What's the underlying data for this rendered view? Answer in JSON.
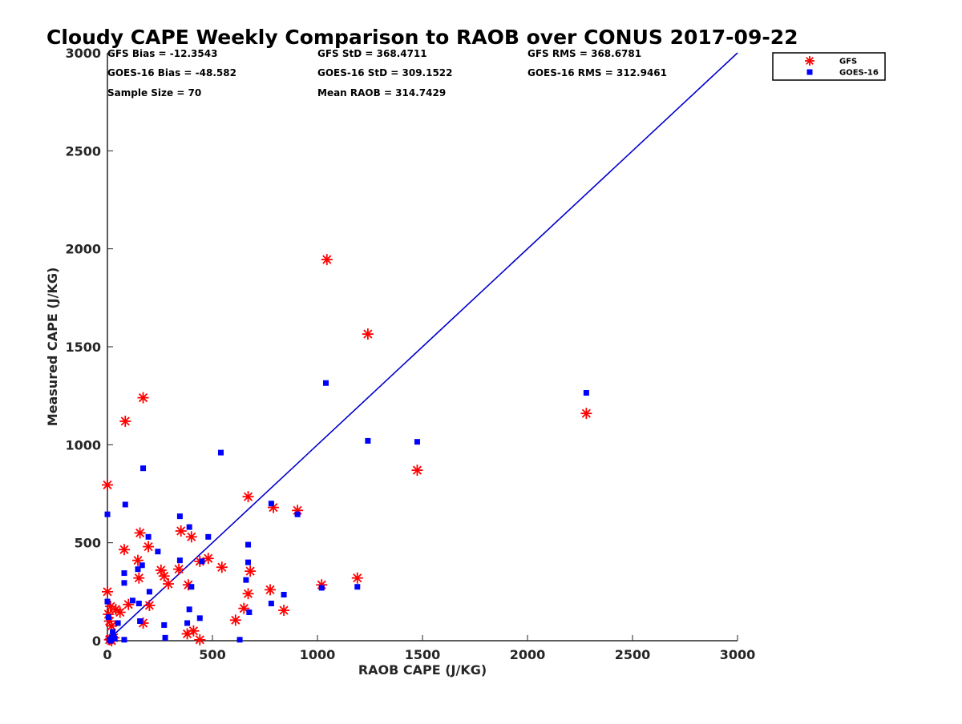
{
  "chart_data": {
    "type": "scatter",
    "title": "Cloudy CAPE Weekly Comparison to RAOB over CONUS 2017-09-22",
    "xlabel": "RAOB CAPE (J/KG)",
    "ylabel": "Measured CAPE (J/KG)",
    "xlim": [
      0,
      3000
    ],
    "ylim": [
      0,
      3000
    ],
    "xticks": [
      "0",
      "500",
      "1000",
      "1500",
      "2000",
      "2500",
      "3000"
    ],
    "yticks": [
      "0",
      "500",
      "1000",
      "1500",
      "2000",
      "2500",
      "3000"
    ],
    "grid": false,
    "legend_position": "top-right",
    "colors": {
      "gfs": "#ff0000",
      "goes": "#0000ff",
      "reference_line": "#0000cc"
    },
    "stats": [
      "GFS Bias = -12.3543",
      "GFS StD = 368.4711",
      "GFS RMS = 368.6781",
      "GOES-16 Bias = -48.582",
      "GOES-16 StD = 309.1522",
      "GOES-16 RMS = 312.9461",
      "Sample Size = 70",
      "Mean RAOB = 314.7429"
    ],
    "reference_line": {
      "x": [
        0,
        3000
      ],
      "y": [
        0,
        3000
      ]
    },
    "series": [
      {
        "name": "GFS",
        "marker": "asterisk",
        "x": [
          1045,
          1240,
          170,
          85,
          2280,
          0,
          1475,
          670,
          790,
          905,
          15,
          155,
          80,
          195,
          145,
          350,
          400,
          150,
          255,
          270,
          290,
          440,
          480,
          545,
          680,
          340,
          1020,
          1190,
          385,
          610,
          650,
          670,
          775,
          840,
          0,
          5,
          10,
          20,
          40,
          60,
          100,
          200,
          170,
          380,
          410,
          30,
          440,
          10,
          15,
          20
        ],
        "y": [
          1945,
          1565,
          1240,
          1120,
          1160,
          795,
          870,
          735,
          680,
          665,
          175,
          550,
          465,
          480,
          410,
          560,
          530,
          320,
          360,
          330,
          290,
          405,
          420,
          375,
          355,
          365,
          285,
          320,
          285,
          105,
          165,
          240,
          260,
          155,
          250,
          135,
          100,
          75,
          160,
          145,
          185,
          180,
          90,
          35,
          50,
          15,
          5,
          5,
          10,
          0
        ]
      },
      {
        "name": "GOES-16",
        "marker": "square",
        "x": [
          1040,
          2280,
          1240,
          1475,
          540,
          170,
          85,
          0,
          345,
          390,
          670,
          780,
          905,
          195,
          480,
          240,
          80,
          145,
          165,
          345,
          390,
          450,
          660,
          670,
          200,
          120,
          150,
          80,
          400,
          1020,
          1190,
          780,
          840,
          380,
          440,
          270,
          155,
          50,
          0,
          5,
          10,
          15,
          20,
          25,
          30,
          35,
          80,
          275,
          630,
          675
        ],
        "y": [
          1315,
          1265,
          1020,
          1015,
          960,
          880,
          695,
          645,
          635,
          580,
          490,
          700,
          645,
          530,
          530,
          455,
          345,
          365,
          385,
          410,
          160,
          405,
          310,
          400,
          250,
          205,
          190,
          295,
          275,
          270,
          275,
          190,
          235,
          90,
          115,
          80,
          100,
          90,
          200,
          120,
          5,
          0,
          15,
          45,
          20,
          10,
          5,
          15,
          5,
          145
        ]
      }
    ]
  }
}
